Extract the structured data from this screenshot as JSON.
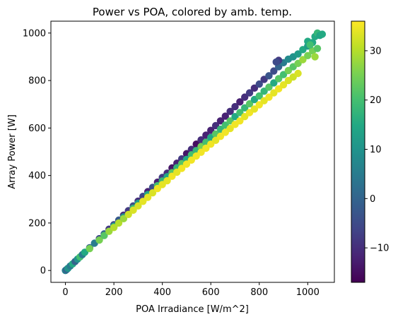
{
  "chart_data": {
    "type": "scatter",
    "title": "Power vs POA, colored by amb. temp.",
    "xlabel": "POA Irradiance [W/m^2]",
    "ylabel": "Array Power [W]",
    "xlim": [
      -60,
      1110
    ],
    "ylim": [
      -50,
      1050
    ],
    "xticks": [
      0,
      200,
      400,
      600,
      800,
      1000
    ],
    "xtick_labels": [
      "0",
      "200",
      "400",
      "600",
      "800",
      "1000"
    ],
    "yticks": [
      0,
      200,
      400,
      600,
      800,
      1000
    ],
    "ytick_labels": [
      "0",
      "200",
      "400",
      "600",
      "800",
      "1000"
    ],
    "grid": false,
    "colormap": "viridis",
    "colorbar": {
      "range": [
        -17,
        36
      ],
      "ticks": [
        -10,
        0,
        10,
        20,
        30
      ],
      "tick_labels": [
        "−10",
        "0",
        "10",
        "20",
        "30"
      ]
    },
    "series": [
      {
        "values": [
          {
            "x": 0,
            "y": 0,
            "c": 5
          },
          {
            "x": 5,
            "y": 4,
            "c": 0
          },
          {
            "x": 10,
            "y": 9,
            "c": 10
          },
          {
            "x": 20,
            "y": 19,
            "c": 5
          },
          {
            "x": 30,
            "y": 28,
            "c": 15
          },
          {
            "x": 40,
            "y": 38,
            "c": 0
          },
          {
            "x": 50,
            "y": 48,
            "c": 10
          },
          {
            "x": 60,
            "y": 57,
            "c": 20
          },
          {
            "x": 70,
            "y": 67,
            "c": 5
          },
          {
            "x": 80,
            "y": 77,
            "c": 15
          },
          {
            "x": 100,
            "y": 96,
            "c": 0
          },
          {
            "x": 100,
            "y": 92,
            "c": 25
          },
          {
            "x": 120,
            "y": 115,
            "c": 5
          },
          {
            "x": 140,
            "y": 134,
            "c": -5
          },
          {
            "x": 140,
            "y": 128,
            "c": 25
          },
          {
            "x": 160,
            "y": 154,
            "c": 0
          },
          {
            "x": 160,
            "y": 147,
            "c": 22
          },
          {
            "x": 180,
            "y": 174,
            "c": -8
          },
          {
            "x": 180,
            "y": 165,
            "c": 28
          },
          {
            "x": 200,
            "y": 193,
            "c": -5
          },
          {
            "x": 200,
            "y": 186,
            "c": 15
          },
          {
            "x": 200,
            "y": 181,
            "c": 30
          },
          {
            "x": 220,
            "y": 212,
            "c": -2
          },
          {
            "x": 220,
            "y": 200,
            "c": 30
          },
          {
            "x": 240,
            "y": 233,
            "c": -10
          },
          {
            "x": 240,
            "y": 225,
            "c": 10
          },
          {
            "x": 240,
            "y": 218,
            "c": 28
          },
          {
            "x": 260,
            "y": 252,
            "c": -8
          },
          {
            "x": 260,
            "y": 236,
            "c": 32
          },
          {
            "x": 280,
            "y": 272,
            "c": -5
          },
          {
            "x": 280,
            "y": 262,
            "c": 18
          },
          {
            "x": 280,
            "y": 254,
            "c": 33
          },
          {
            "x": 300,
            "y": 292,
            "c": -10
          },
          {
            "x": 300,
            "y": 283,
            "c": 12
          },
          {
            "x": 300,
            "y": 272,
            "c": 33
          },
          {
            "x": 320,
            "y": 312,
            "c": -6
          },
          {
            "x": 320,
            "y": 291,
            "c": 34
          },
          {
            "x": 340,
            "y": 332,
            "c": -12
          },
          {
            "x": 340,
            "y": 320,
            "c": 15
          },
          {
            "x": 340,
            "y": 308,
            "c": 34
          },
          {
            "x": 360,
            "y": 350,
            "c": -4
          },
          {
            "x": 360,
            "y": 327,
            "c": 33
          },
          {
            "x": 380,
            "y": 372,
            "c": -12
          },
          {
            "x": 380,
            "y": 357,
            "c": 20
          },
          {
            "x": 380,
            "y": 345,
            "c": 35
          },
          {
            "x": 400,
            "y": 392,
            "c": -8
          },
          {
            "x": 400,
            "y": 377,
            "c": 18
          },
          {
            "x": 400,
            "y": 362,
            "c": 34
          },
          {
            "x": 420,
            "y": 410,
            "c": -10
          },
          {
            "x": 420,
            "y": 395,
            "c": 15
          },
          {
            "x": 420,
            "y": 378,
            "c": 34
          },
          {
            "x": 440,
            "y": 432,
            "c": -14
          },
          {
            "x": 440,
            "y": 412,
            "c": 22
          },
          {
            "x": 440,
            "y": 397,
            "c": 35
          },
          {
            "x": 460,
            "y": 452,
            "c": -12
          },
          {
            "x": 460,
            "y": 433,
            "c": 18
          },
          {
            "x": 460,
            "y": 414,
            "c": 34
          },
          {
            "x": 480,
            "y": 470,
            "c": -8
          },
          {
            "x": 480,
            "y": 450,
            "c": 22
          },
          {
            "x": 480,
            "y": 430,
            "c": 35
          },
          {
            "x": 500,
            "y": 492,
            "c": -14
          },
          {
            "x": 500,
            "y": 468,
            "c": 15
          },
          {
            "x": 500,
            "y": 448,
            "c": 35
          },
          {
            "x": 520,
            "y": 510,
            "c": -10
          },
          {
            "x": 520,
            "y": 487,
            "c": 20
          },
          {
            "x": 520,
            "y": 465,
            "c": 35
          },
          {
            "x": 540,
            "y": 532,
            "c": -15
          },
          {
            "x": 540,
            "y": 505,
            "c": 18
          },
          {
            "x": 540,
            "y": 482,
            "c": 35
          },
          {
            "x": 560,
            "y": 550,
            "c": -10
          },
          {
            "x": 560,
            "y": 522,
            "c": 25
          },
          {
            "x": 560,
            "y": 498,
            "c": 35
          },
          {
            "x": 580,
            "y": 570,
            "c": -12
          },
          {
            "x": 580,
            "y": 540,
            "c": 20
          },
          {
            "x": 580,
            "y": 515,
            "c": 35
          },
          {
            "x": 600,
            "y": 590,
            "c": -12
          },
          {
            "x": 600,
            "y": 560,
            "c": 15
          },
          {
            "x": 600,
            "y": 532,
            "c": 35
          },
          {
            "x": 620,
            "y": 610,
            "c": -10
          },
          {
            "x": 620,
            "y": 575,
            "c": 22
          },
          {
            "x": 620,
            "y": 548,
            "c": 34
          },
          {
            "x": 640,
            "y": 630,
            "c": -12
          },
          {
            "x": 640,
            "y": 595,
            "c": 18
          },
          {
            "x": 640,
            "y": 565,
            "c": 35
          },
          {
            "x": 660,
            "y": 650,
            "c": -12
          },
          {
            "x": 660,
            "y": 612,
            "c": 20
          },
          {
            "x": 660,
            "y": 582,
            "c": 35
          },
          {
            "x": 680,
            "y": 670,
            "c": -10
          },
          {
            "x": 680,
            "y": 630,
            "c": 22
          },
          {
            "x": 680,
            "y": 598,
            "c": 34
          },
          {
            "x": 700,
            "y": 690,
            "c": -10
          },
          {
            "x": 700,
            "y": 648,
            "c": 15
          },
          {
            "x": 700,
            "y": 615,
            "c": 35
          },
          {
            "x": 720,
            "y": 710,
            "c": -12
          },
          {
            "x": 720,
            "y": 665,
            "c": 20
          },
          {
            "x": 720,
            "y": 630,
            "c": 35
          },
          {
            "x": 740,
            "y": 730,
            "c": -10
          },
          {
            "x": 740,
            "y": 685,
            "c": 18
          },
          {
            "x": 740,
            "y": 648,
            "c": 34
          },
          {
            "x": 760,
            "y": 748,
            "c": -8
          },
          {
            "x": 760,
            "y": 702,
            "c": 22
          },
          {
            "x": 760,
            "y": 665,
            "c": 35
          },
          {
            "x": 780,
            "y": 768,
            "c": -10
          },
          {
            "x": 780,
            "y": 720,
            "c": 15
          },
          {
            "x": 780,
            "y": 680,
            "c": 34
          },
          {
            "x": 800,
            "y": 785,
            "c": -5
          },
          {
            "x": 800,
            "y": 735,
            "c": 20
          },
          {
            "x": 800,
            "y": 698,
            "c": 35
          },
          {
            "x": 820,
            "y": 805,
            "c": -8
          },
          {
            "x": 820,
            "y": 755,
            "c": 18
          },
          {
            "x": 820,
            "y": 715,
            "c": 34
          },
          {
            "x": 840,
            "y": 820,
            "c": -3
          },
          {
            "x": 840,
            "y": 772,
            "c": 22
          },
          {
            "x": 840,
            "y": 730,
            "c": 35
          },
          {
            "x": 860,
            "y": 840,
            "c": -5
          },
          {
            "x": 860,
            "y": 790,
            "c": 15
          },
          {
            "x": 860,
            "y": 748,
            "c": 34
          },
          {
            "x": 880,
            "y": 858,
            "c": 0
          },
          {
            "x": 880,
            "y": 808,
            "c": 22
          },
          {
            "x": 880,
            "y": 765,
            "c": 35
          },
          {
            "x": 900,
            "y": 875,
            "c": 5
          },
          {
            "x": 900,
            "y": 825,
            "c": 20
          },
          {
            "x": 900,
            "y": 782,
            "c": 34
          },
          {
            "x": 920,
            "y": 890,
            "c": 8
          },
          {
            "x": 920,
            "y": 842,
            "c": 25
          },
          {
            "x": 920,
            "y": 800,
            "c": 33
          },
          {
            "x": 940,
            "y": 900,
            "c": 10
          },
          {
            "x": 940,
            "y": 858,
            "c": 22
          },
          {
            "x": 940,
            "y": 815,
            "c": 32
          },
          {
            "x": 960,
            "y": 912,
            "c": 12
          },
          {
            "x": 960,
            "y": 872,
            "c": 25
          },
          {
            "x": 960,
            "y": 830,
            "c": 33
          },
          {
            "x": 980,
            "y": 930,
            "c": 15
          },
          {
            "x": 980,
            "y": 888,
            "c": 28
          },
          {
            "x": 1000,
            "y": 945,
            "c": 12
          },
          {
            "x": 1000,
            "y": 905,
            "c": 25
          },
          {
            "x": 1020,
            "y": 960,
            "c": 15
          },
          {
            "x": 1020,
            "y": 925,
            "c": 25
          },
          {
            "x": 1030,
            "y": 985,
            "c": 15
          },
          {
            "x": 1040,
            "y": 1000,
            "c": 18
          },
          {
            "x": 1050,
            "y": 990,
            "c": 14
          },
          {
            "x": 1060,
            "y": 995,
            "c": 15
          },
          {
            "x": 880,
            "y": 885,
            "c": -8
          },
          {
            "x": 870,
            "y": 878,
            "c": -5
          },
          {
            "x": 1000,
            "y": 965,
            "c": 15
          },
          {
            "x": 1010,
            "y": 950,
            "c": 20
          },
          {
            "x": 1030,
            "y": 900,
            "c": 28
          },
          {
            "x": 1040,
            "y": 935,
            "c": 22
          }
        ]
      }
    ]
  }
}
